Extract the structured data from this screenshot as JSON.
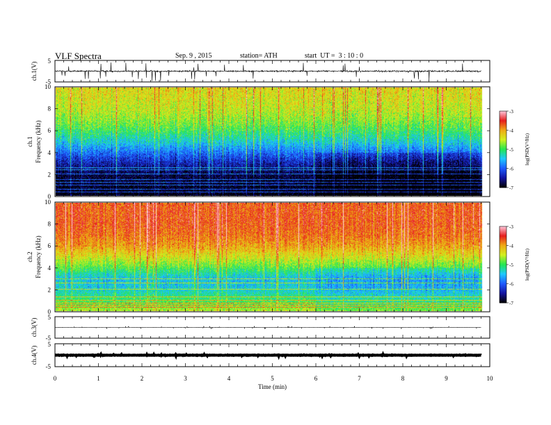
{
  "header": {
    "title": "VLF Spectra",
    "date": "Sep. 9 , 2015",
    "station": "station= ATH",
    "start": "start  UT =  3 : 10 : 0"
  },
  "chart_data": {
    "type": "heatmap",
    "xlabel": "Time (min)",
    "xlim": [
      0,
      10
    ],
    "x_ticks": [
      "0",
      "1",
      "2",
      "3",
      "4",
      "5",
      "6",
      "7",
      "8",
      "9",
      "10"
    ],
    "data_extent_min": 9.8,
    "panels": [
      {
        "id": "ch1-waveform",
        "kind": "waveform",
        "ylabel": "ch.1(V)",
        "ylim": [
          -5,
          5
        ],
        "ytick_labels": [
          "5",
          "-5"
        ],
        "baseline_v": 0.0,
        "noise_v": 1.2,
        "spike_v": 4.5
      },
      {
        "id": "ch1-spectrogram",
        "kind": "spectrogram",
        "ylabel": "ch.1\nFrequency (kHz)",
        "ylim": [
          0,
          10
        ],
        "ytick_labels": [
          "0",
          "2",
          "4",
          "6",
          "8",
          "10"
        ],
        "colorbar": {
          "label": "log(PSD(V²/Hz)",
          "range": [
            -7,
            -3
          ],
          "tick_labels": [
            "-3",
            "-4",
            "-5",
            "-6",
            "-7"
          ]
        },
        "profile": {
          "f_kHz": [
            0,
            1,
            2,
            3,
            4,
            5,
            6,
            7,
            8,
            9,
            10
          ],
          "logPSD": [
            -7.0,
            -6.9,
            -6.8,
            -6.4,
            -5.9,
            -5.4,
            -5.0,
            -4.7,
            -4.5,
            -4.4,
            -4.3
          ]
        },
        "noise": 0.45,
        "quiet_interval_min": [
          6.0,
          9.8
        ],
        "quiet_offset": -0.25,
        "harmonic_lines_kHz": [
          0.3,
          0.6,
          1.0,
          1.2,
          1.5,
          2.0,
          2.4,
          2.6
        ]
      },
      {
        "id": "ch2-spectrogram",
        "kind": "spectrogram",
        "ylabel": "ch.2\nFrequency (kHz)",
        "ylim": [
          0,
          10
        ],
        "ytick_labels": [
          "0",
          "2",
          "4",
          "6",
          "8",
          "10"
        ],
        "colorbar": {
          "label": "log(PSD(V²/Hz)",
          "range": [
            -7,
            -3
          ],
          "tick_labels": [
            "-3",
            "-4",
            "-5",
            "-6",
            "-7"
          ]
        },
        "profile": {
          "f_kHz": [
            0,
            1,
            2,
            3,
            4,
            5,
            6,
            7,
            8,
            9,
            10
          ],
          "logPSD": [
            -4.6,
            -5.0,
            -5.4,
            -5.5,
            -4.9,
            -4.4,
            -4.0,
            -3.8,
            -3.7,
            -3.7,
            -3.7
          ]
        },
        "noise": 0.4,
        "quiet_interval_min": [
          6.0,
          9.8
        ],
        "quiet_offset": -0.2,
        "harmonic_lines_kHz": [
          0.3,
          0.5,
          0.7,
          1.0,
          1.3,
          2.0,
          2.6,
          3.0
        ]
      },
      {
        "id": "ch3-waveform",
        "kind": "waveform",
        "ylabel": "ch.3(V)",
        "ylim": [
          -5,
          5
        ],
        "ytick_labels": [
          "5",
          "-5"
        ],
        "baseline_v": 0.0,
        "noise_v": 0.15,
        "spike_v": 0.6
      },
      {
        "id": "ch4-waveform",
        "kind": "waveform",
        "ylabel": "ch.4(V)",
        "ylim": [
          -5,
          5
        ],
        "ytick_labels": [
          "5",
          "-5"
        ],
        "baseline_v": 0.0,
        "noise_v": 0.25,
        "spike_v": 0.3
      }
    ],
    "colormap": [
      "#000000",
      "#1414a0",
      "#1e5aff",
      "#1ec8ff",
      "#23e650",
      "#d2f01e",
      "#f0aa14",
      "#e61e1e",
      "#ffc8dc"
    ]
  }
}
